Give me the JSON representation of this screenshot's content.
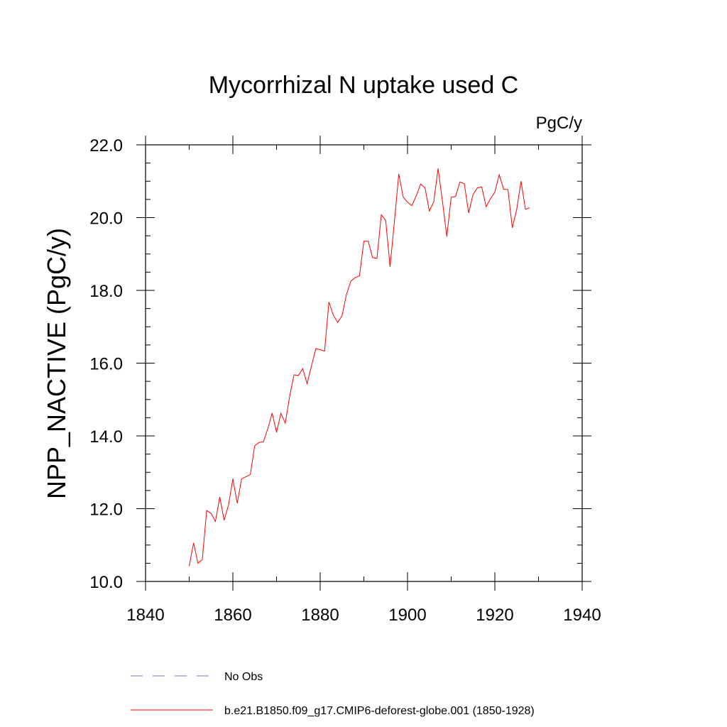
{
  "chart_data": {
    "type": "line",
    "title": "Mycorrhizal N uptake used C",
    "units_label": "PgC/y",
    "ylabel": "NPP_NACTIVE  (PgC/y)",
    "xlabel": "",
    "xlim": [
      1840,
      1940
    ],
    "ylim": [
      10.0,
      22.0
    ],
    "x_ticks": [
      1840,
      1860,
      1880,
      1900,
      1920,
      1940
    ],
    "x_tick_labels": [
      "1840",
      "1860",
      "1880",
      "1900",
      "1920",
      "1940"
    ],
    "y_ticks": [
      10,
      12,
      14,
      16,
      18,
      20,
      22
    ],
    "y_tick_labels": [
      "10.0",
      "12.0",
      "14.0",
      "16.0",
      "18.0",
      "20.0",
      "22.0"
    ],
    "series": [
      {
        "name": "b.e21.B1850.f09_g17.CMIP6-deforest-globe.001 (1850-1928)",
        "color": "#ff0000",
        "x": [
          1850,
          1851,
          1852,
          1853,
          1854,
          1855,
          1856,
          1857,
          1858,
          1859,
          1860,
          1861,
          1862,
          1863,
          1864,
          1865,
          1866,
          1867,
          1868,
          1869,
          1870,
          1871,
          1872,
          1873,
          1874,
          1875,
          1876,
          1877,
          1878,
          1879,
          1880,
          1881,
          1882,
          1883,
          1884,
          1885,
          1886,
          1887,
          1888,
          1889,
          1890,
          1891,
          1892,
          1893,
          1894,
          1895,
          1896,
          1897,
          1898,
          1899,
          1900,
          1901,
          1902,
          1903,
          1904,
          1905,
          1906,
          1907,
          1908,
          1909,
          1910,
          1911,
          1912,
          1913,
          1914,
          1915,
          1916,
          1917,
          1918,
          1919,
          1920,
          1921,
          1922,
          1923,
          1924,
          1925,
          1926,
          1927,
          1928
        ],
        "values": [
          10.42,
          11.06,
          10.5,
          10.6,
          11.95,
          11.87,
          11.65,
          12.32,
          11.68,
          12.1,
          12.82,
          12.15,
          12.82,
          12.88,
          12.94,
          13.73,
          13.82,
          13.84,
          14.2,
          14.63,
          14.1,
          14.62,
          14.35,
          15.08,
          15.68,
          15.66,
          15.85,
          15.44,
          15.92,
          16.4,
          16.37,
          16.33,
          17.68,
          17.32,
          17.12,
          17.3,
          17.88,
          18.25,
          18.35,
          18.4,
          19.35,
          19.35,
          18.9,
          18.88,
          20.08,
          19.92,
          18.65,
          19.9,
          21.2,
          20.57,
          20.42,
          20.33,
          20.6,
          20.92,
          20.82,
          20.18,
          20.43,
          21.35,
          20.45,
          19.48,
          20.56,
          20.58,
          20.98,
          20.93,
          20.13,
          20.63,
          20.82,
          20.84,
          20.3,
          20.52,
          20.7,
          21.18,
          20.78,
          20.77,
          19.72,
          20.22,
          21.0,
          20.23,
          20.27
        ]
      },
      {
        "name": "No Obs",
        "color": "#7b6fc9",
        "dashed": true,
        "x": [],
        "values": []
      }
    ],
    "legend": [
      {
        "label": "No Obs",
        "style": "dashed",
        "color": "#7b6fc9"
      },
      {
        "label": "b.e21.B1850.f09_g17.CMIP6-deforest-globe.001 (1850-1928)",
        "style": "solid",
        "color": "#ff0000"
      }
    ],
    "legend_position": "bottom"
  }
}
